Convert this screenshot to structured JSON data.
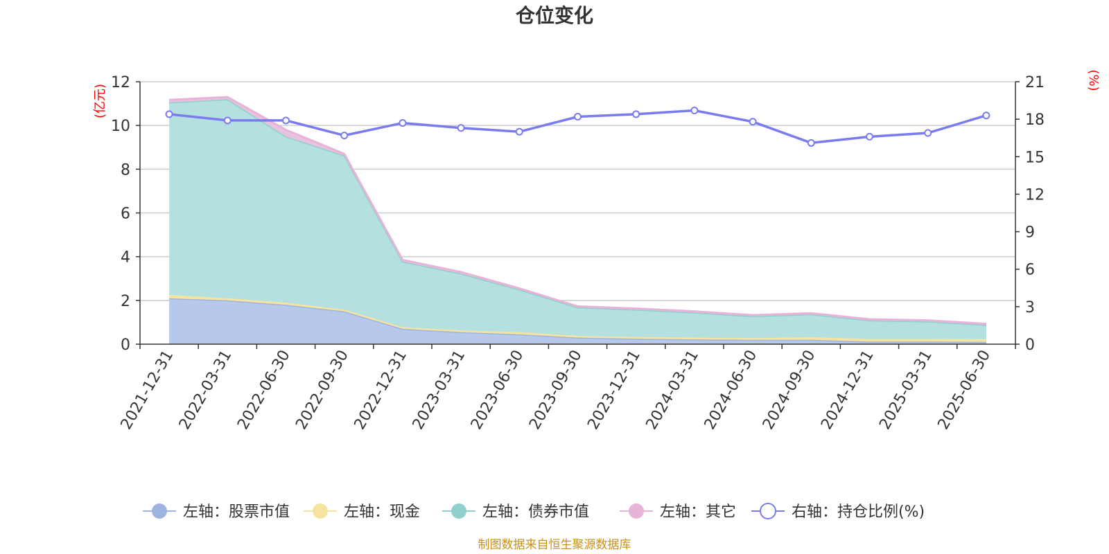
{
  "chart_data": {
    "type": "area",
    "title": "仓位变化",
    "left_axis_label": "(亿元)",
    "right_axis_label": "(%)",
    "categories": [
      "2021-12-31",
      "2022-03-31",
      "2022-06-30",
      "2022-09-30",
      "2022-12-31",
      "2023-03-31",
      "2023-06-30",
      "2023-09-30",
      "2023-12-31",
      "2024-03-31",
      "2024-06-30",
      "2024-09-30",
      "2024-12-31",
      "2025-03-31",
      "2025-06-30"
    ],
    "left_ylim": [
      0,
      12
    ],
    "left_ticks": [
      0,
      2,
      4,
      6,
      8,
      10,
      12
    ],
    "right_ylim": [
      0,
      21
    ],
    "right_ticks": [
      0,
      3,
      6,
      9,
      12,
      15,
      18,
      21
    ],
    "grid": true,
    "legend_position": "bottom",
    "stacked_series": [
      {
        "name": "左轴：股票市值",
        "axis": "left",
        "color": "#9db4e0",
        "fill": "#b7c9ea",
        "values": [
          2.1,
          2.0,
          1.8,
          1.5,
          0.7,
          0.55,
          0.45,
          0.3,
          0.25,
          0.22,
          0.2,
          0.2,
          0.12,
          0.12,
          0.1
        ]
      },
      {
        "name": "左轴：现金",
        "axis": "left",
        "color": "#f6e3a0",
        "fill": "#f6e3a0",
        "values": [
          0.15,
          0.1,
          0.1,
          0.08,
          0.08,
          0.08,
          0.1,
          0.08,
          0.08,
          0.08,
          0.08,
          0.12,
          0.12,
          0.12,
          0.13
        ]
      },
      {
        "name": "左轴：债券市值",
        "axis": "left",
        "color": "#8fd0cc",
        "fill": "#b4e1e0",
        "values": [
          8.8,
          9.1,
          7.6,
          7.05,
          3.0,
          2.6,
          1.95,
          1.3,
          1.25,
          1.15,
          1.0,
          1.05,
          0.85,
          0.8,
          0.65
        ]
      },
      {
        "name": "左轴：其它",
        "axis": "left",
        "color": "#e8b3d9",
        "fill": "#e8c3e0",
        "values": [
          0.12,
          0.1,
          0.3,
          0.07,
          0.07,
          0.07,
          0.05,
          0.05,
          0.05,
          0.05,
          0.05,
          0.05,
          0.05,
          0.05,
          0.05
        ]
      }
    ],
    "line_series": {
      "name": "右轴：持仓比例(%)",
      "axis": "right",
      "color": "#7b7bf0",
      "values": [
        18.4,
        17.9,
        17.9,
        16.7,
        17.7,
        17.3,
        17.0,
        18.2,
        18.4,
        18.7,
        17.8,
        16.1,
        16.6,
        16.9,
        18.3
      ]
    }
  },
  "footer": {
    "source_text": "制图数据来自恒生聚源数据库"
  }
}
